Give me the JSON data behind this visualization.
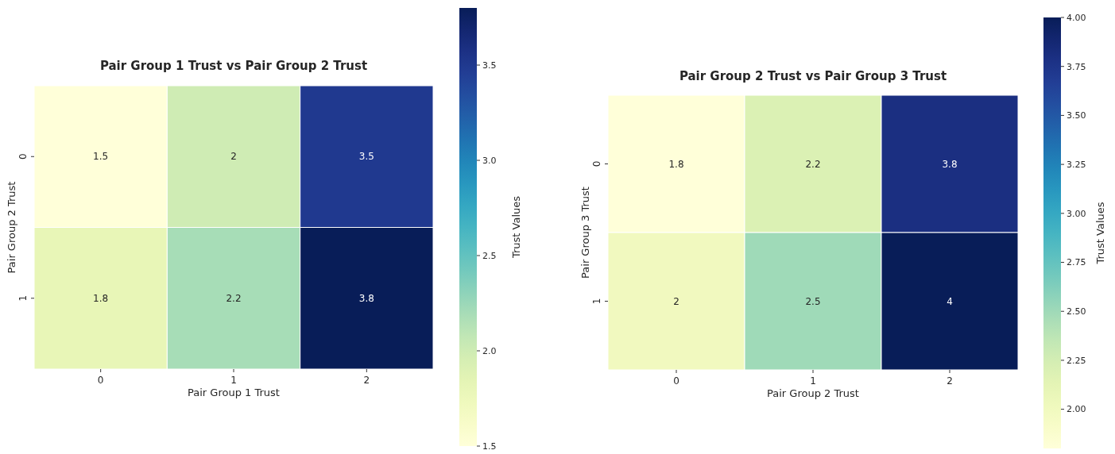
{
  "chart_data": [
    {
      "type": "heatmap",
      "title": "Pair Group 1 Trust vs Pair Group 2 Trust",
      "xlabel": "Pair Group 1 Trust",
      "ylabel": "Pair Group 2 Trust",
      "clabel": "Trust Values",
      "categories": [
        "0",
        "1",
        "2"
      ],
      "y_categories": [
        "0",
        "1"
      ],
      "cells": [
        [
          1.5,
          2,
          3.5
        ],
        [
          1.8,
          2.2,
          3.8
        ]
      ],
      "clim": [
        1.5,
        3.8
      ],
      "cticks": [
        {
          "value": 1.5,
          "label": "1.5"
        },
        {
          "value": 2,
          "label": "2.0"
        },
        {
          "value": 2.5,
          "label": "2.5"
        },
        {
          "value": 3,
          "label": "3.0"
        },
        {
          "value": 3.5,
          "label": "3.5"
        }
      ],
      "data_labels": true
    },
    {
      "type": "heatmap",
      "title": "Pair Group 2 Trust vs Pair Group 3 Trust",
      "xlabel": "Pair Group 2 Trust",
      "ylabel": "Pair Group 3 Trust",
      "clabel": "Trust Values",
      "categories": [
        "0",
        "1",
        "2"
      ],
      "y_categories": [
        "0",
        "1"
      ],
      "cells": [
        [
          1.8,
          2.2,
          3.8
        ],
        [
          2,
          2.5,
          4
        ]
      ],
      "clim": [
        1.8,
        4.0
      ],
      "cticks": [
        {
          "value": 2,
          "label": "2.00"
        },
        {
          "value": 2.25,
          "label": "2.25"
        },
        {
          "value": 2.5,
          "label": "2.50"
        },
        {
          "value": 2.75,
          "label": "2.75"
        },
        {
          "value": 3,
          "label": "3.00"
        },
        {
          "value": 3.25,
          "label": "3.25"
        },
        {
          "value": 3.5,
          "label": "3.50"
        },
        {
          "value": 3.75,
          "label": "3.75"
        },
        {
          "value": 4,
          "label": "4.00"
        }
      ],
      "data_labels": true
    }
  ]
}
